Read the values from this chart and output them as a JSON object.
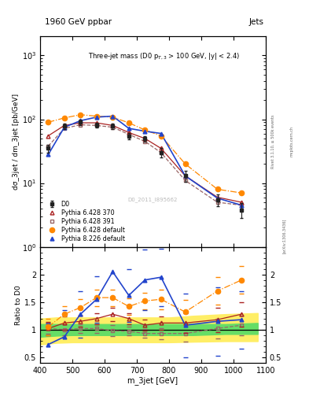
{
  "title_top": "1960 GeV ppbar",
  "title_right": "Jets",
  "annotation": "Three-jet mass (D0 p$_{T,3}$ > 100 GeV, |y| < 2.4)",
  "watermark": "D0_2011_I895662",
  "rivet_label": "Rivet 3.1.10, ≥ 500k events",
  "arxiv_label": "[arXiv:1306.3436]",
  "mcplots_label": "mcplots.cern.ch",
  "ylabel_main": "dσ_3jet / dm_3jet [pb/GeV]",
  "ylabel_ratio": "Ratio to D0",
  "xlabel": "m_3jet [GeV]",
  "x_centers": [
    425,
    475,
    525,
    575,
    625,
    675,
    725,
    775,
    850,
    950,
    1025
  ],
  "D0_y": [
    35,
    78,
    90,
    82,
    78,
    55,
    50,
    30,
    13,
    5.5,
    3.8
  ],
  "D0_yerr": [
    5,
    8,
    8,
    7,
    8,
    6,
    5,
    5,
    2.5,
    1.2,
    1.0
  ],
  "py370_y": [
    55,
    80,
    88,
    88,
    80,
    62,
    50,
    35,
    13,
    6.0,
    5.0
  ],
  "py391_y": [
    38,
    72,
    82,
    80,
    75,
    58,
    45,
    30,
    11,
    5.0,
    4.5
  ],
  "pydef_y": [
    90,
    105,
    118,
    112,
    108,
    88,
    68,
    55,
    20,
    8.0,
    7.0
  ],
  "py8def_y": [
    28,
    75,
    95,
    108,
    112,
    72,
    65,
    60,
    13,
    5.8,
    4.5
  ],
  "ratio_py370": [
    1.02,
    1.12,
    1.15,
    1.2,
    1.28,
    1.2,
    1.08,
    1.12,
    1.12,
    1.18,
    1.28
  ],
  "ratio_py391": [
    1.02,
    1.0,
    1.02,
    1.02,
    0.98,
    0.97,
    0.93,
    0.93,
    0.93,
    1.02,
    1.08
  ],
  "ratio_pydef": [
    1.05,
    1.28,
    1.4,
    1.58,
    1.58,
    1.42,
    1.52,
    1.55,
    1.32,
    1.7,
    1.9
  ],
  "ratio_py8def": [
    0.73,
    0.87,
    1.28,
    1.55,
    2.05,
    1.62,
    1.9,
    1.95,
    1.08,
    1.15,
    1.18
  ],
  "ratio_py370_err": [
    0.12,
    0.12,
    0.1,
    0.1,
    0.12,
    0.1,
    0.1,
    0.12,
    0.18,
    0.22,
    0.22
  ],
  "ratio_py391_err": [
    0.1,
    0.1,
    0.08,
    0.08,
    0.1,
    0.08,
    0.08,
    0.1,
    0.15,
    0.18,
    0.18
  ],
  "ratio_pydef_err": [
    0.15,
    0.15,
    0.15,
    0.15,
    0.15,
    0.15,
    0.15,
    0.18,
    0.22,
    0.25,
    0.25
  ],
  "ratio_py8def_err": [
    0.38,
    0.48,
    0.42,
    0.42,
    0.48,
    0.48,
    0.55,
    0.52,
    0.58,
    0.62,
    0.52
  ],
  "green_band_x": [
    400,
    450,
    500,
    550,
    600,
    650,
    700,
    750,
    800,
    875,
    975,
    1075
  ],
  "green_band_lo": [
    0.87,
    0.89,
    0.9,
    0.9,
    0.9,
    0.9,
    0.9,
    0.9,
    0.9,
    0.9,
    0.92,
    0.92
  ],
  "green_band_hi": [
    1.1,
    1.1,
    1.1,
    1.1,
    1.1,
    1.1,
    1.1,
    1.1,
    1.1,
    1.1,
    1.1,
    1.12
  ],
  "yellow_band_x": [
    400,
    450,
    500,
    550,
    600,
    650,
    700,
    750,
    800,
    875,
    975,
    1075
  ],
  "yellow_band_lo": [
    0.73,
    0.76,
    0.77,
    0.77,
    0.77,
    0.77,
    0.77,
    0.77,
    0.77,
    0.78,
    0.79,
    0.79
  ],
  "yellow_band_hi": [
    1.2,
    1.22,
    1.22,
    1.22,
    1.22,
    1.22,
    1.22,
    1.22,
    1.22,
    1.25,
    1.28,
    1.3
  ],
  "color_D0": "#222222",
  "color_py370": "#aa2222",
  "color_py391": "#996666",
  "color_pydef": "#ff8800",
  "color_py8def": "#2244cc",
  "xlim": [
    400,
    1100
  ],
  "ylim_main": [
    1,
    2000
  ],
  "ylim_ratio": [
    0.4,
    2.5
  ],
  "ratio_yticks": [
    0.5,
    1.0,
    1.5,
    2.0
  ]
}
